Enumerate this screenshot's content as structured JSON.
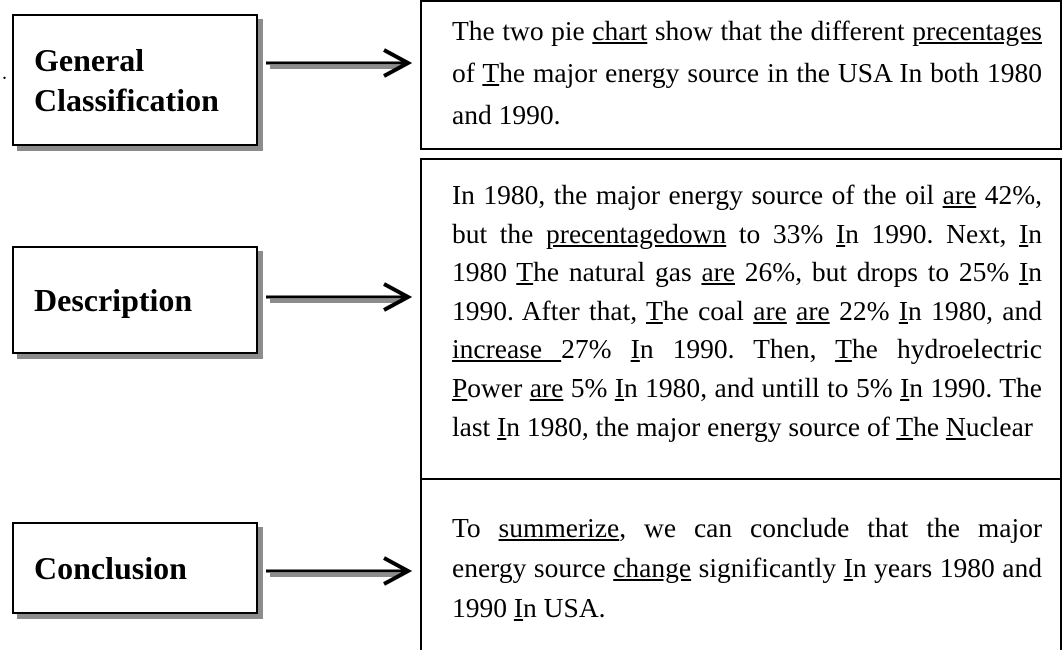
{
  "margin_mark": ".",
  "labels": [
    "General Classification",
    "Description",
    "Conclusion"
  ],
  "paragraphs": [
    [
      {
        "text": "The two pie ",
        "underline": false
      },
      {
        "text": "chart",
        "underline": true
      },
      {
        "text": " show that the different ",
        "underline": false
      },
      {
        "text": "precentages",
        "underline": true
      },
      {
        "text": " of ",
        "underline": false
      },
      {
        "text": "T",
        "underline": true
      },
      {
        "text": "he major energy source in the USA In both 1980 and 1990.",
        "underline": false
      }
    ],
    [
      {
        "text": "In 1980, the major energy source of the oil ",
        "underline": false
      },
      {
        "text": "are",
        "underline": true
      },
      {
        "text": " 42%",
        "underline": false
      },
      {
        "text": ",",
        "underline": true
      },
      {
        "text": " but the ",
        "underline": false
      },
      {
        "text": "precentagedown",
        "underline": true
      },
      {
        "text": " to 33% ",
        "underline": false
      },
      {
        "text": "I",
        "underline": true
      },
      {
        "text": "n 1990. Next, ",
        "underline": false
      },
      {
        "text": "I",
        "underline": true
      },
      {
        "text": "n 1980 ",
        "underline": false
      },
      {
        "text": "T",
        "underline": true
      },
      {
        "text": "he natural gas ",
        "underline": false
      },
      {
        "text": "are",
        "underline": true
      },
      {
        "text": " 26%",
        "underline": false
      },
      {
        "text": ",",
        "underline": true
      },
      {
        "text": " but drops to 25% ",
        "underline": false
      },
      {
        "text": "I",
        "underline": true
      },
      {
        "text": "n 1990. After that, ",
        "underline": false
      },
      {
        "text": "T",
        "underline": true
      },
      {
        "text": "he coal ",
        "underline": false
      },
      {
        "text": "are",
        "underline": true
      },
      {
        "text": " ",
        "underline": false
      },
      {
        "text": "are",
        "underline": true
      },
      {
        "text": " 22% ",
        "underline": false
      },
      {
        "text": "I",
        "underline": true
      },
      {
        "text": "n 1980",
        "underline": false
      },
      {
        "text": ",",
        "underline": true
      },
      {
        "text": " and ",
        "underline": false
      },
      {
        "text": "increase ",
        "underline": true
      },
      {
        "text": "27% ",
        "underline": false
      },
      {
        "text": "I",
        "underline": true
      },
      {
        "text": "n 1990. Then, ",
        "underline": false
      },
      {
        "text": "T",
        "underline": true
      },
      {
        "text": "he hydroelectric ",
        "underline": false
      },
      {
        "text": "P",
        "underline": true
      },
      {
        "text": "ower ",
        "underline": false
      },
      {
        "text": "are",
        "underline": true
      },
      {
        "text": " 5% ",
        "underline": false
      },
      {
        "text": "I",
        "underline": true
      },
      {
        "text": "n 1980",
        "underline": false
      },
      {
        "text": ",",
        "underline": true
      },
      {
        "text": " and untill to 5% ",
        "underline": false
      },
      {
        "text": "I",
        "underline": true
      },
      {
        "text": "n 1990. The last ",
        "underline": false
      },
      {
        "text": "I",
        "underline": true
      },
      {
        "text": "n 1980, the major energy source of ",
        "underline": false
      },
      {
        "text": "T",
        "underline": true
      },
      {
        "text": "he ",
        "underline": false
      },
      {
        "text": "N",
        "underline": true
      },
      {
        "text": "uclear",
        "underline": false
      }
    ],
    [
      {
        "text": "To ",
        "underline": false
      },
      {
        "text": "summerize",
        "underline": true
      },
      {
        "text": ", we can conclude that the major energy source ",
        "underline": false
      },
      {
        "text": "change",
        "underline": true
      },
      {
        "text": " significantly ",
        "underline": false
      },
      {
        "text": "I",
        "underline": true
      },
      {
        "text": "n years 1980 and 1990 ",
        "underline": false
      },
      {
        "text": "I",
        "underline": true
      },
      {
        "text": "n USA.",
        "underline": false
      }
    ]
  ]
}
